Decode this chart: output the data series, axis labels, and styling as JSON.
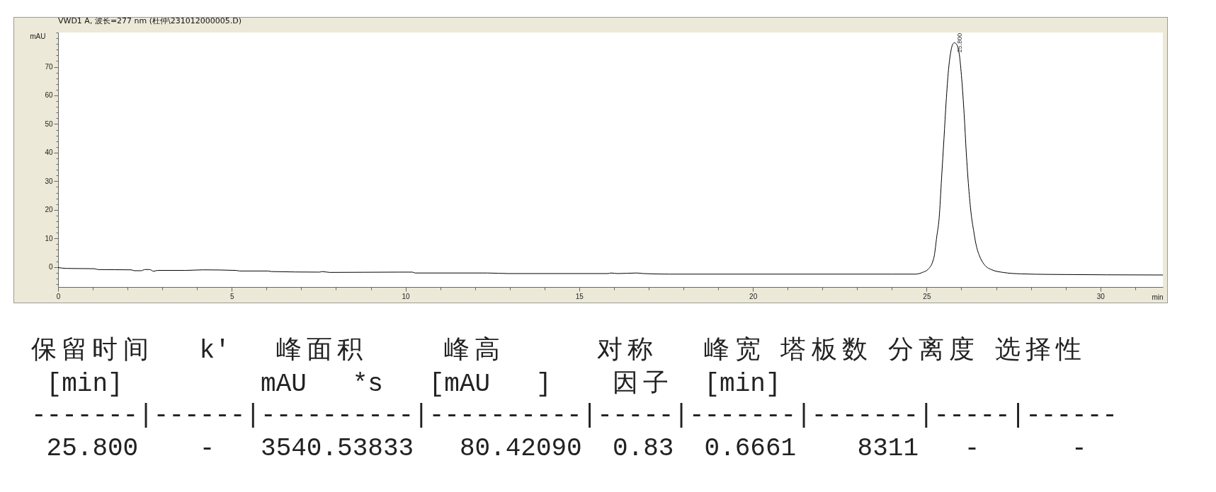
{
  "chart_data": {
    "type": "line",
    "title": "VWD1 A, 波长=277 nm (杜仲\\231012000005.D)",
    "xlabel": "min",
    "ylabel": "mAU",
    "x": [
      0,
      0.23,
      1.04,
      1.15,
      2.1,
      2.2,
      2.39,
      2.5,
      2.64,
      2.75,
      2.86,
      3.66,
      4.17,
      5.12,
      5.23,
      6.04,
      6.15,
      7.53,
      7.6,
      7.82,
      9.8,
      10.2,
      10.28,
      12.36,
      12.97,
      15.82,
      15.92,
      16.1,
      16.66,
      16.85,
      17.6,
      24.0,
      24.68,
      24.88,
      25.05,
      25.16,
      25.22,
      25.29,
      25.36,
      25.43,
      25.5,
      25.56,
      25.63,
      25.7,
      25.76,
      25.8,
      25.87,
      25.94,
      26.01,
      26.08,
      26.14,
      26.21,
      26.28,
      26.35,
      26.42,
      26.52,
      26.65,
      26.86,
      27.2,
      27.71,
      28.56,
      31.8
    ],
    "series": [
      {
        "color": "#000000",
        "values": [
          -0.2,
          -0.5,
          -0.6,
          -0.9,
          -1.0,
          -1.3,
          -1.3,
          -0.9,
          -0.9,
          -1.5,
          -1.2,
          -1.2,
          -1.0,
          -1.2,
          -1.4,
          -1.4,
          -1.6,
          -1.8,
          -1.6,
          -1.9,
          -1.8,
          -1.8,
          -2.1,
          -2.1,
          -2.3,
          -2.3,
          -2.1,
          -2.3,
          -2.1,
          -2.3,
          -2.5,
          -2.5,
          -2.5,
          -1.9,
          -0.7,
          1.4,
          3.9,
          10.5,
          17.1,
          31.1,
          45.1,
          57.5,
          69.0,
          75.6,
          78.1,
          78.4,
          77.7,
          74.4,
          65.7,
          53.4,
          40.2,
          27.8,
          18.7,
          12.9,
          8.0,
          3.9,
          1.0,
          -0.9,
          -1.9,
          -2.4,
          -2.6,
          -2.8
        ]
      }
    ],
    "xlim": [
      0,
      31.8
    ],
    "ylim": [
      -7,
      82
    ],
    "xticks": [
      0,
      {
        "value": 1,
        "label": null
      },
      {
        "value": 2,
        "label": null
      },
      {
        "value": 3,
        "label": null
      },
      {
        "value": 4,
        "label": null
      },
      5,
      {
        "value": 6,
        "label": null
      },
      {
        "value": 7,
        "label": null
      },
      {
        "value": 8,
        "label": null
      },
      {
        "value": 9,
        "label": null
      },
      10,
      {
        "value": 11,
        "label": null
      },
      {
        "value": 12,
        "label": null
      },
      {
        "value": 13,
        "label": null
      },
      {
        "value": 14,
        "label": null
      },
      15,
      {
        "value": 16,
        "label": null
      },
      {
        "value": 17,
        "label": null
      },
      {
        "value": 18,
        "label": null
      },
      {
        "value": 19,
        "label": null
      },
      20,
      {
        "value": 21,
        "label": null
      },
      {
        "value": 22,
        "label": null
      },
      {
        "value": 23,
        "label": null
      },
      {
        "value": 24,
        "label": null
      },
      25,
      {
        "value": 26,
        "label": null
      },
      {
        "value": 27,
        "label": null
      },
      {
        "value": 28,
        "label": null
      },
      {
        "value": 29,
        "label": null
      },
      30,
      {
        "value": 31,
        "label": null
      }
    ],
    "yticks": [
      {
        "value": -6,
        "label": null
      },
      {
        "value": -4,
        "label": null
      },
      {
        "value": -2,
        "label": null
      },
      0,
      {
        "value": 2,
        "label": null
      },
      {
        "value": 4,
        "label": null
      },
      {
        "value": 6,
        "label": null
      },
      {
        "value": 8,
        "label": null
      },
      10,
      {
        "value": 12,
        "label": null
      },
      {
        "value": 14,
        "label": null
      },
      {
        "value": 16,
        "label": null
      },
      {
        "value": 18,
        "label": null
      },
      20,
      {
        "value": 22,
        "label": null
      },
      {
        "value": 24,
        "label": null
      },
      {
        "value": 26,
        "label": null
      },
      {
        "value": 28,
        "label": null
      },
      30,
      {
        "value": 32,
        "label": null
      },
      {
        "value": 34,
        "label": null
      },
      {
        "value": 36,
        "label": null
      },
      {
        "value": 38,
        "label": null
      },
      40,
      {
        "value": 42,
        "label": null
      },
      {
        "value": 44,
        "label": null
      },
      {
        "value": 46,
        "label": null
      },
      {
        "value": 48,
        "label": null
      },
      50,
      {
        "value": 52,
        "label": null
      },
      {
        "value": 54,
        "label": null
      },
      {
        "value": 56,
        "label": null
      },
      {
        "value": 58,
        "label": null
      },
      60,
      {
        "value": 62,
        "label": null
      },
      {
        "value": 64,
        "label": null
      },
      {
        "value": 66,
        "label": null
      },
      {
        "value": 68,
        "label": null
      },
      70,
      {
        "value": 72,
        "label": null
      },
      {
        "value": 74,
        "label": null
      },
      {
        "value": 76,
        "label": null
      },
      {
        "value": 78,
        "label": null
      },
      {
        "value": 80,
        "label": null
      },
      {
        "value": 82,
        "label": null
      }
    ],
    "line_style": "solid",
    "annotations": [
      {
        "text": "25.800",
        "x": 25.8,
        "y": 78.4
      },
      "保留时间   k'   峰面积     峰高      对称   峰宽 塔板数 分离度 选择性",
      " [min]         mAU   *s   [mAU   ]    因子  [min]",
      "-------|------|----------|----------|-----|-------|-------|-----|------",
      " 25.800    -   3540.53833   80.42090  0.83  0.6661    8311   -      -"
    ]
  }
}
